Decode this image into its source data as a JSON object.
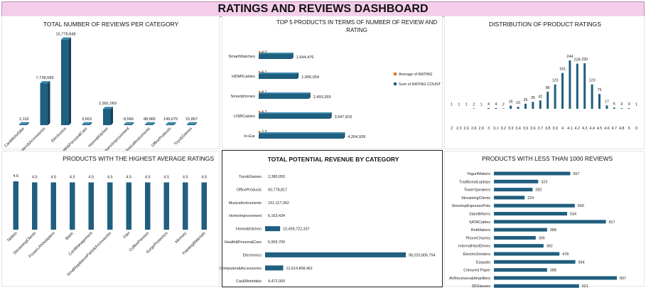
{
  "banner": {
    "title": "RATINGS AND REVIEWS DASHBOARD"
  },
  "colors": {
    "bar": "#1f5f7f",
    "avg": "#e0702a",
    "banner": "#f4cdea"
  },
  "charts": {
    "reviews_per_category": {
      "title": "TOTAL NUMBER OF REVIEWS PER CATEGORY",
      "chart_data": {
        "type": "bar",
        "categories": [
          "Car&Motorbike",
          "Computers&Accessories",
          "Electronics",
          "Health&PersonalCare",
          "Home&Kitchen",
          "HomeImprovement",
          "MusicalInstruments",
          "OfficeProducts",
          "Toys&Games"
        ],
        "values": [
          1118,
          7728689,
          15778848,
          3663,
          2991069,
          8566,
          88882,
          149675,
          15867
        ],
        "labels": [
          "1,118",
          "7,728,689",
          "15,778,848",
          "3,663",
          "2,991,069",
          "8,566",
          "88,882",
          "149,675",
          "15,867"
        ]
      }
    },
    "top5_products": {
      "title": "TOP 5 PRODUCTS IN TERMS OF NUMBER OF REVIEW AND RATING",
      "chart_data": {
        "type": "bar",
        "categories": [
          "SmartWatches",
          "HDMICables",
          "Smartphones",
          "USBCables",
          "In-Ear"
        ],
        "series": [
          {
            "name": "Average of RATING",
            "values": [
              4.0,
              4.1,
              4.1,
              4.2,
              3.9
            ],
            "labels": [
              "4.0",
              "4.1",
              "4.1",
              "4.2",
              "3.9"
            ]
          },
          {
            "name": "Sum of RATING COUNT",
            "values": [
              1644476,
              1906054,
              2493269,
              3547816,
              4204939
            ],
            "labels": [
              "1,644,476",
              "1,906,054",
              "2,493,269",
              "3,547,816",
              "4,204,939"
            ]
          }
        ],
        "legend": "right"
      }
    },
    "distribution": {
      "title": "DISTRIBUTION OF PRODUCT RATINGS",
      "chart_data": {
        "type": "bar",
        "categories": [
          "2",
          "2.3",
          "2.6",
          "2.8",
          "2.9",
          "3",
          "3.1",
          "3.2",
          "3.3",
          "3.4",
          "3.5",
          "3.6",
          "3.7",
          "3.8",
          "3.9",
          "4",
          "4.1",
          "4.2",
          "4.3",
          "4.4",
          "4.5",
          "4.6",
          "4.7",
          "4.8",
          "5",
          "0"
        ],
        "values": [
          1,
          1,
          1,
          2,
          1,
          4,
          4,
          2,
          16,
          10,
          26,
          35,
          42,
          86,
          123,
          181,
          244,
          228,
          230,
          123,
          75,
          17,
          6,
          3,
          3,
          1
        ],
        "labels": [
          "1",
          "1",
          "1",
          "2",
          "1",
          "4",
          "4",
          "2",
          "16",
          "10",
          "26",
          "35",
          "42",
          "86",
          "123",
          "181",
          "244",
          "228",
          "230",
          "123",
          "75",
          "17",
          "6",
          "3",
          "3",
          "1"
        ]
      }
    },
    "highest_avg": {
      "title": "PRODUCTS WITH THE HIGHEST AVERAGE RATINGS",
      "chart_data": {
        "type": "bar",
        "categories": [
          "Tablets",
          "StreamingClients",
          "PowerLANAdapters",
          "Basic",
          "CordManagement",
          "SmallApplianceParts&Accessories",
          "Film",
          "CoffeePresses",
          "SurgeProtectors",
          "Memory",
          "PaintingMaterials"
        ],
        "values": [
          4.6,
          4.5,
          4.5,
          4.5,
          4.5,
          4.5,
          4.5,
          4.5,
          4.5,
          4.5,
          4.5
        ],
        "labels": [
          "4.6",
          "4.5",
          "4.5",
          "4.5",
          "4.5",
          "4.5",
          "4.5",
          "4.5",
          "4.5",
          "4.5",
          "4.5"
        ]
      }
    },
    "potential_revenue": {
      "title": "TOTAL POTENTIAL REVENUE BY CATEGORY",
      "chart_data": {
        "type": "bar",
        "categories": [
          "Toys&Games",
          "OfficeProducts",
          "MusicalInstruments",
          "HomeImprovement",
          "Home&Kitchen",
          "Health&PersonalCare",
          "Electronics",
          "Computers&Accessories",
          "Car&Motorbike"
        ],
        "values": [
          2380050,
          60778817,
          151117062,
          6163434,
          10459722337,
          6959700,
          98020806794,
          12614808461,
          4472000
        ],
        "labels": [
          "2,380,050",
          "60,778,817",
          "151,117,062",
          "6,163,434",
          "10,459,722,337",
          "6,959,700",
          "98,020,806,794",
          "12,614,808,461",
          "4,472,000"
        ]
      }
    },
    "less_than_1000": {
      "title": "PRODUCTS WITH LESS THAN 1000 REVIEWS",
      "chart_data": {
        "type": "bar",
        "categories": [
          "YogurtMakers",
          "TraditionalLaptops",
          "TowerSpeakers",
          "StreamingClients",
          "StovetopEspressoPots",
          "StandMixers",
          "SATACables",
          "RotiMakers",
          "PhoneCharms",
          "InternalHardDrives",
          "ElectricGrinders",
          "Earpads",
          "Coloured Paper",
          "AVReceivers&Amplifiers",
          "3DGlasses"
        ],
        "values": [
          557,
          323,
          282,
          224,
          590,
          534,
          817,
          388,
          305,
          362,
          478,
          594,
          388,
          897,
          621
        ],
        "labels": [
          "557",
          "323",
          "282",
          "224",
          "590",
          "534",
          "817",
          "388",
          "305",
          "362",
          "478",
          "594",
          "388",
          "897",
          "621"
        ]
      }
    }
  }
}
